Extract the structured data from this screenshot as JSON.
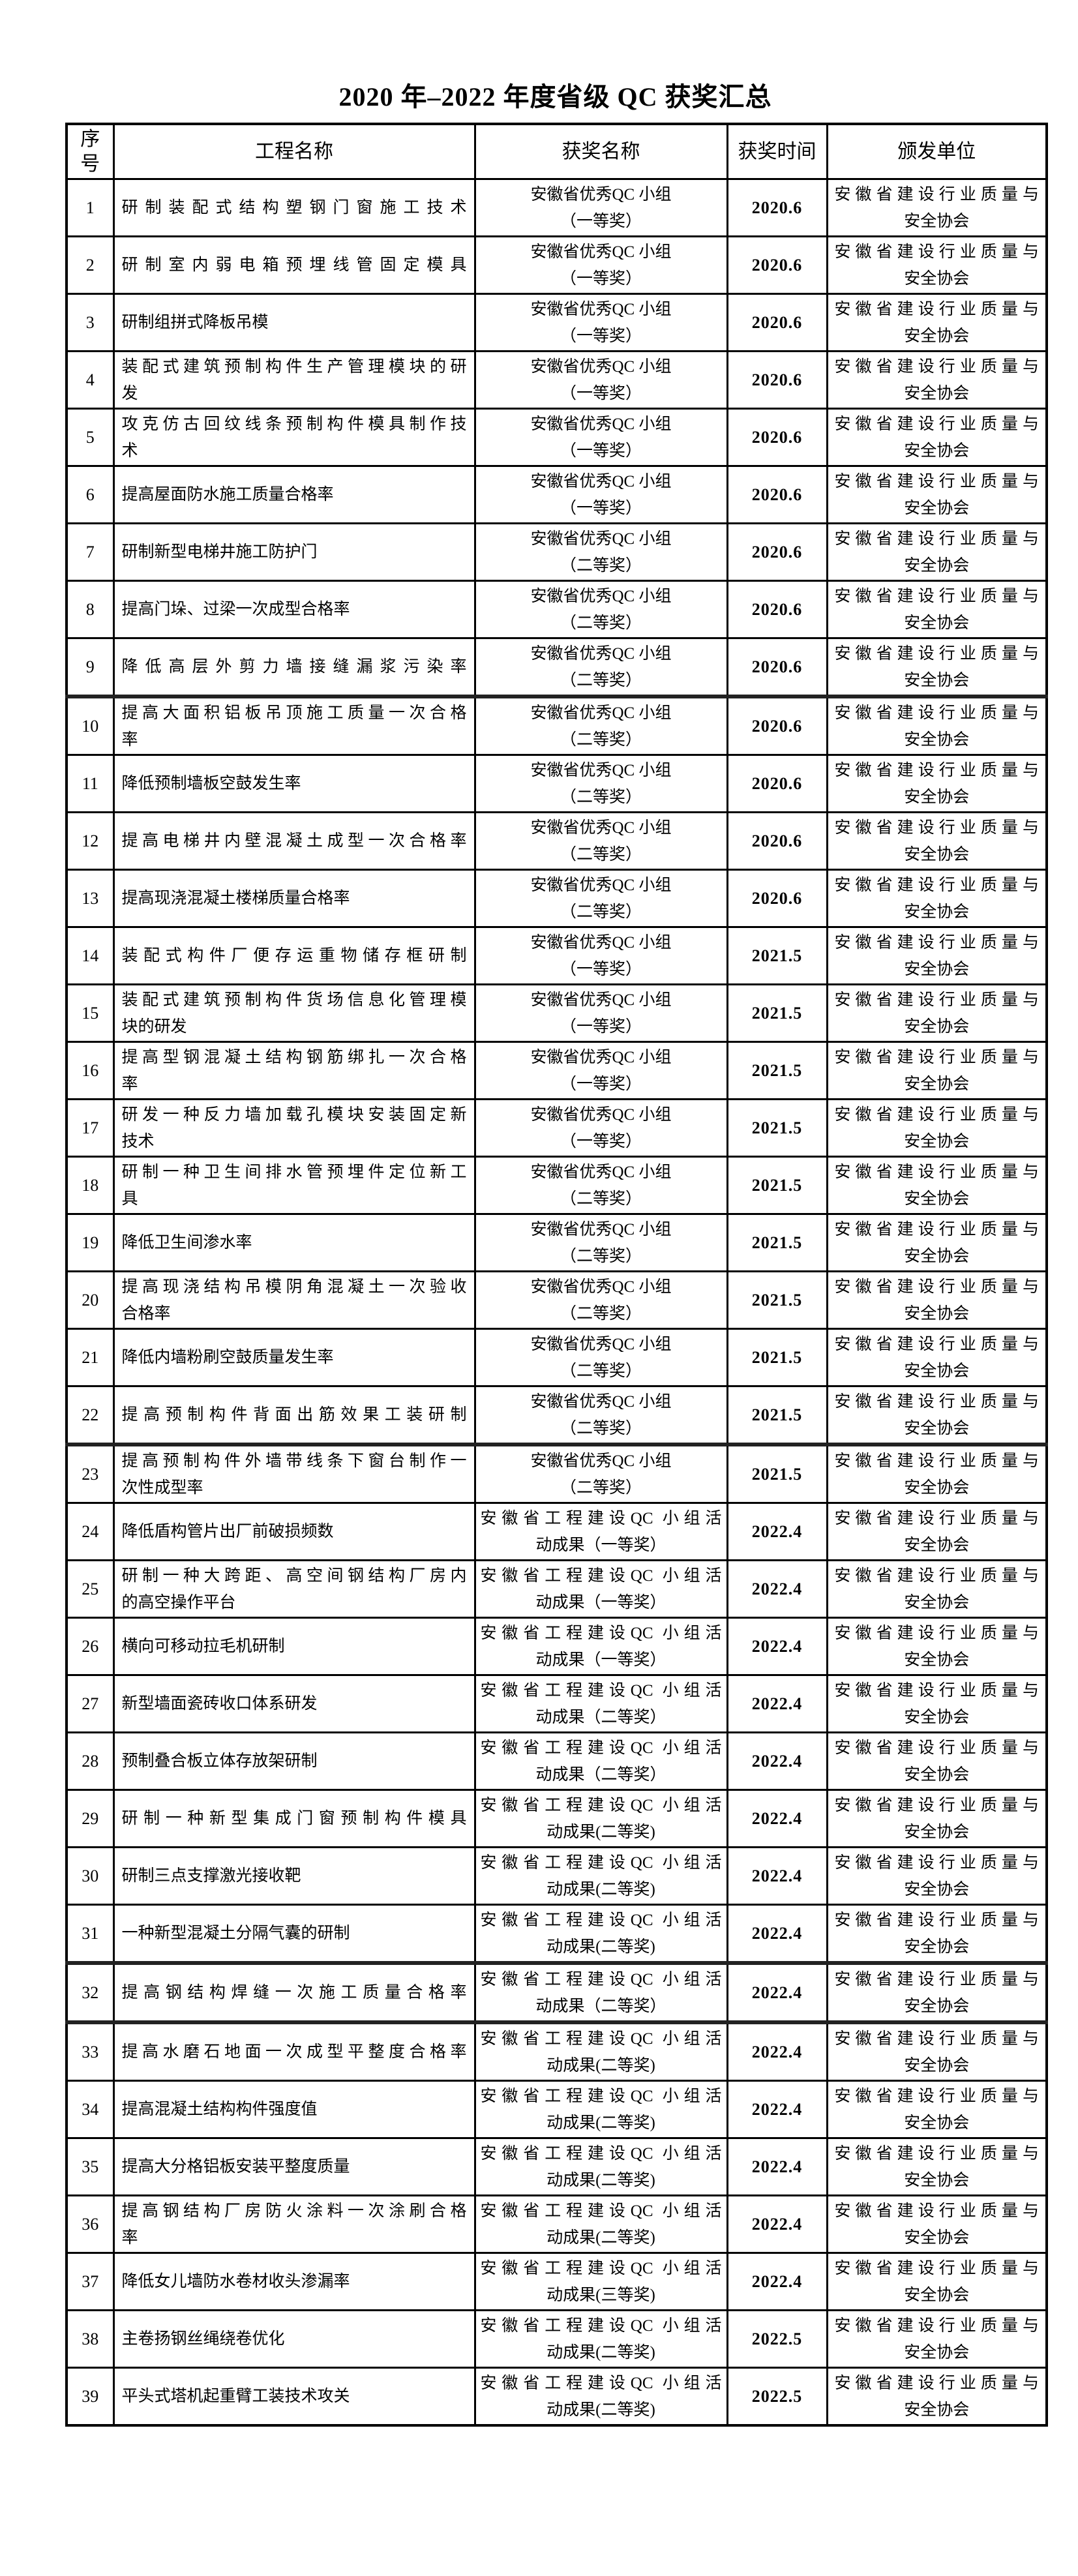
{
  "title": "2020 年–2022 年度省级 QC 获奖汇总",
  "colors": {
    "background": "#ffffff",
    "text": "#000000",
    "border": "#000000",
    "thick_separator": "#222222"
  },
  "table": {
    "columns": [
      [
        "序",
        "号"
      ],
      "工程名称",
      "获奖名称",
      "获奖时间",
      "颁发单位"
    ],
    "rows": [
      {
        "no": "1",
        "name": "研制装配式结构塑钢门窗施工技术",
        "award": [
          "安徽省优秀QC 小组",
          "（一等奖）"
        ],
        "time": "2020.6",
        "issuer": [
          "安徽省建设行业质量与",
          "安全协会"
        ],
        "thick_top": false
      },
      {
        "no": "2",
        "name": "研制室内弱电箱预埋线管固定模具",
        "award": [
          "安徽省优秀QC 小组",
          "（一等奖）"
        ],
        "time": "2020.6",
        "issuer": [
          "安徽省建设行业质量与",
          "安全协会"
        ],
        "thick_top": false
      },
      {
        "no": "3",
        "name": "研制组拼式降板吊模",
        "award": [
          "安徽省优秀QC 小组",
          "（一等奖）"
        ],
        "time": "2020.6",
        "issuer": [
          "安徽省建设行业质量与",
          "安全协会"
        ],
        "thick_top": false
      },
      {
        "no": "4",
        "name": [
          "装配式建筑预制构件生产管理模块的研",
          "发"
        ],
        "award": [
          "安徽省优秀QC 小组",
          "（一等奖）"
        ],
        "time": "2020.6",
        "issuer": [
          "安徽省建设行业质量与",
          "安全协会"
        ],
        "thick_top": false
      },
      {
        "no": "5",
        "name": [
          "攻克仿古回纹线条预制构件模具制作技",
          "术"
        ],
        "award": [
          "安徽省优秀QC 小组",
          "（一等奖）"
        ],
        "time": "2020.6",
        "issuer": [
          "安徽省建设行业质量与",
          "安全协会"
        ],
        "thick_top": false
      },
      {
        "no": "6",
        "name": "提高屋面防水施工质量合格率",
        "award": [
          "安徽省优秀QC 小组",
          "（一等奖）"
        ],
        "time": "2020.6",
        "issuer": [
          "安徽省建设行业质量与",
          "安全协会"
        ],
        "thick_top": false
      },
      {
        "no": "7",
        "name": "研制新型电梯井施工防护门",
        "award": [
          "安徽省优秀QC 小组",
          "（二等奖）"
        ],
        "time": "2020.6",
        "issuer": [
          "安徽省建设行业质量与",
          "安全协会"
        ],
        "thick_top": false
      },
      {
        "no": "8",
        "name": "提高门垛、过梁一次成型合格率",
        "award": [
          "安徽省优秀QC 小组",
          "（二等奖）"
        ],
        "time": "2020.6",
        "issuer": [
          "安徽省建设行业质量与",
          "安全协会"
        ],
        "thick_top": false
      },
      {
        "no": "9",
        "name": "降低高层外剪力墙接缝漏浆污染率",
        "award": [
          "安徽省优秀QC 小组",
          "（二等奖）"
        ],
        "time": "2020.6",
        "issuer": [
          "安徽省建设行业质量与",
          "安全协会"
        ],
        "thick_top": false
      },
      {
        "no": "10",
        "name": [
          "提高大面积铝板吊顶施工质量一次合格",
          "率"
        ],
        "award": [
          "安徽省优秀QC 小组",
          "（二等奖）"
        ],
        "time": "2020.6",
        "issuer": [
          "安徽省建设行业质量与",
          "安全协会"
        ],
        "thick_top": true
      },
      {
        "no": "11",
        "name": "降低预制墙板空鼓发生率",
        "award": [
          "安徽省优秀QC 小组",
          "（二等奖）"
        ],
        "time": "2020.6",
        "issuer": [
          "安徽省建设行业质量与",
          "安全协会"
        ],
        "thick_top": false
      },
      {
        "no": "12",
        "name": "提高电梯井内壁混凝土成型一次合格率",
        "award": [
          "安徽省优秀QC 小组",
          "（二等奖）"
        ],
        "time": "2020.6",
        "issuer": [
          "安徽省建设行业质量与",
          "安全协会"
        ],
        "thick_top": false
      },
      {
        "no": "13",
        "name": "提高现浇混凝土楼梯质量合格率",
        "award": [
          "安徽省优秀QC 小组",
          "（二等奖）"
        ],
        "time": "2020.6",
        "issuer": [
          "安徽省建设行业质量与",
          "安全协会"
        ],
        "thick_top": false
      },
      {
        "no": "14",
        "name": "装配式构件厂便存运重物储存框研制",
        "award": [
          "安徽省优秀QC 小组",
          "（一等奖）"
        ],
        "time": "2021.5",
        "issuer": [
          "安徽省建设行业质量与",
          "安全协会"
        ],
        "thick_top": false
      },
      {
        "no": "15",
        "name": [
          "装配式建筑预制构件货场信息化管理模",
          "块的研发"
        ],
        "award": [
          "安徽省优秀QC 小组",
          "（一等奖）"
        ],
        "time": "2021.5",
        "issuer": [
          "安徽省建设行业质量与",
          "安全协会"
        ],
        "thick_top": false
      },
      {
        "no": "16",
        "name": [
          "提高型钢混凝土结构钢筋绑扎一次合格",
          "率"
        ],
        "award": [
          "安徽省优秀QC 小组",
          "（一等奖）"
        ],
        "time": "2021.5",
        "issuer": [
          "安徽省建设行业质量与",
          "安全协会"
        ],
        "thick_top": false
      },
      {
        "no": "17",
        "name": [
          "研发一种反力墙加载孔模块安装固定新",
          "技术"
        ],
        "award": [
          "安徽省优秀QC 小组",
          "（一等奖）"
        ],
        "time": "2021.5",
        "issuer": [
          "安徽省建设行业质量与",
          "安全协会"
        ],
        "thick_top": false
      },
      {
        "no": "18",
        "name": [
          "研制一种卫生间排水管预埋件定位新工",
          "具"
        ],
        "award": [
          "安徽省优秀QC 小组",
          "（二等奖）"
        ],
        "time": "2021.5",
        "issuer": [
          "安徽省建设行业质量与",
          "安全协会"
        ],
        "thick_top": false
      },
      {
        "no": "19",
        "name": "降低卫生间渗水率",
        "award": [
          "安徽省优秀QC 小组",
          "（二等奖）"
        ],
        "time": "2021.5",
        "issuer": [
          "安徽省建设行业质量与",
          "安全协会"
        ],
        "thick_top": false
      },
      {
        "no": "20",
        "name": [
          "提高现浇结构吊模阴角混凝土一次验收",
          "合格率"
        ],
        "award": [
          "安徽省优秀QC 小组",
          "（二等奖）"
        ],
        "time": "2021.5",
        "issuer": [
          "安徽省建设行业质量与",
          "安全协会"
        ],
        "thick_top": false
      },
      {
        "no": "21",
        "name": "降低内墙粉刷空鼓质量发生率",
        "award": [
          "安徽省优秀QC 小组",
          "（二等奖）"
        ],
        "time": "2021.5",
        "issuer": [
          "安徽省建设行业质量与",
          "安全协会"
        ],
        "thick_top": false
      },
      {
        "no": "22",
        "name": "提高预制构件背面出筋效果工装研制",
        "award": [
          "安徽省优秀QC 小组",
          "（二等奖）"
        ],
        "time": "2021.5",
        "issuer": [
          "安徽省建设行业质量与",
          "安全协会"
        ],
        "thick_top": false
      },
      {
        "no": "23",
        "name": [
          "提高预制构件外墙带线条下窗台制作一",
          "次性成型率"
        ],
        "award": [
          "安徽省优秀QC 小组",
          "（二等奖）"
        ],
        "time": "2021.5",
        "issuer": [
          "安徽省建设行业质量与",
          "安全协会"
        ],
        "thick_top": true
      },
      {
        "no": "24",
        "name": "降低盾构管片出厂前破损频数",
        "award": [
          "安徽省工程建设QC 小组活",
          "动成果（一等奖）"
        ],
        "time": "2022.4",
        "issuer": [
          "安徽省建设行业质量与",
          "安全协会"
        ],
        "thick_top": false
      },
      {
        "no": "25",
        "name": [
          "研制一种大跨距、高空间钢结构厂房内",
          "的高空操作平台"
        ],
        "award": [
          "安徽省工程建设QC 小组活",
          "动成果（一等奖）"
        ],
        "time": "2022.4",
        "issuer": [
          "安徽省建设行业质量与",
          "安全协会"
        ],
        "thick_top": false
      },
      {
        "no": "26",
        "name": "横向可移动拉毛机研制",
        "award": [
          "安徽省工程建设QC 小组活",
          "动成果（一等奖）"
        ],
        "time": "2022.4",
        "issuer": [
          "安徽省建设行业质量与",
          "安全协会"
        ],
        "thick_top": false
      },
      {
        "no": "27",
        "name": "新型墙面瓷砖收口体系研发",
        "award": [
          "安徽省工程建设QC 小组活",
          "动成果（二等奖）"
        ],
        "time": "2022.4",
        "issuer": [
          "安徽省建设行业质量与",
          "安全协会"
        ],
        "thick_top": false
      },
      {
        "no": "28",
        "name": "预制叠合板立体存放架研制",
        "award": [
          "安徽省工程建设QC 小组活",
          "动成果（二等奖）"
        ],
        "time": "2022.4",
        "issuer": [
          "安徽省建设行业质量与",
          "安全协会"
        ],
        "thick_top": false
      },
      {
        "no": "29",
        "name": "研制一种新型集成门窗预制构件模具",
        "award": [
          "安徽省工程建设QC 小组活",
          "动成果(二等奖)"
        ],
        "time": "2022.4",
        "issuer": [
          "安徽省建设行业质量与",
          "安全协会"
        ],
        "thick_top": false
      },
      {
        "no": "30",
        "name": "研制三点支撑激光接收靶",
        "award": [
          "安徽省工程建设QC 小组活",
          "动成果(二等奖)"
        ],
        "time": "2022.4",
        "issuer": [
          "安徽省建设行业质量与",
          "安全协会"
        ],
        "thick_top": false
      },
      {
        "no": "31",
        "name": "一种新型混凝土分隔气囊的研制",
        "award": [
          "安徽省工程建设QC 小组活",
          "动成果(二等奖)"
        ],
        "time": "2022.4",
        "issuer": [
          "安徽省建设行业质量与",
          "安全协会"
        ],
        "thick_top": false
      },
      {
        "no": "32",
        "name": "提高钢结构焊缝一次施工质量合格率",
        "award": [
          "安徽省工程建设QC 小组活",
          "动成果（二等奖）"
        ],
        "time": "2022.4",
        "issuer": [
          "安徽省建设行业质量与",
          "安全协会"
        ],
        "thick_top": true
      },
      {
        "no": "33",
        "name": "提高水磨石地面一次成型平整度合格率",
        "award": [
          "安徽省工程建设QC 小组活",
          "动成果(二等奖)"
        ],
        "time": "2022.4",
        "issuer": [
          "安徽省建设行业质量与",
          "安全协会"
        ],
        "thick_top": true
      },
      {
        "no": "34",
        "name": "提高混凝土结构构件强度值",
        "award": [
          "安徽省工程建设QC 小组活",
          "动成果(二等奖)"
        ],
        "time": "2022.4",
        "issuer": [
          "安徽省建设行业质量与",
          "安全协会"
        ],
        "thick_top": false
      },
      {
        "no": "35",
        "name": "提高大分格铝板安装平整度质量",
        "award": [
          "安徽省工程建设QC 小组活",
          "动成果(二等奖)"
        ],
        "time": "2022.4",
        "issuer": [
          "安徽省建设行业质量与",
          "安全协会"
        ],
        "thick_top": false
      },
      {
        "no": "36",
        "name": [
          "提高钢结构厂房防火涂料一次涂刷合格",
          "率"
        ],
        "award": [
          "安徽省工程建设QC 小组活",
          "动成果(二等奖)"
        ],
        "time": "2022.4",
        "issuer": [
          "安徽省建设行业质量与",
          "安全协会"
        ],
        "thick_top": false
      },
      {
        "no": "37",
        "name": "降低女儿墙防水卷材收头渗漏率",
        "award": [
          "安徽省工程建设QC 小组活",
          "动成果(三等奖)"
        ],
        "time": "2022.4",
        "issuer": [
          "安徽省建设行业质量与",
          "安全协会"
        ],
        "thick_top": false
      },
      {
        "no": "38",
        "name": "主卷扬钢丝绳绕卷优化",
        "award": [
          "安徽省工程建设QC 小组活",
          "动成果(二等奖)"
        ],
        "time": "2022.5",
        "issuer": [
          "安徽省建设行业质量与",
          "安全协会"
        ],
        "thick_top": false
      },
      {
        "no": "39",
        "name": "平头式塔机起重臂工装技术攻关",
        "award": [
          "安徽省工程建设QC 小组活",
          "动成果(二等奖)"
        ],
        "time": "2022.5",
        "issuer": [
          "安徽省建设行业质量与",
          "安全协会"
        ],
        "thick_top": false
      }
    ]
  }
}
